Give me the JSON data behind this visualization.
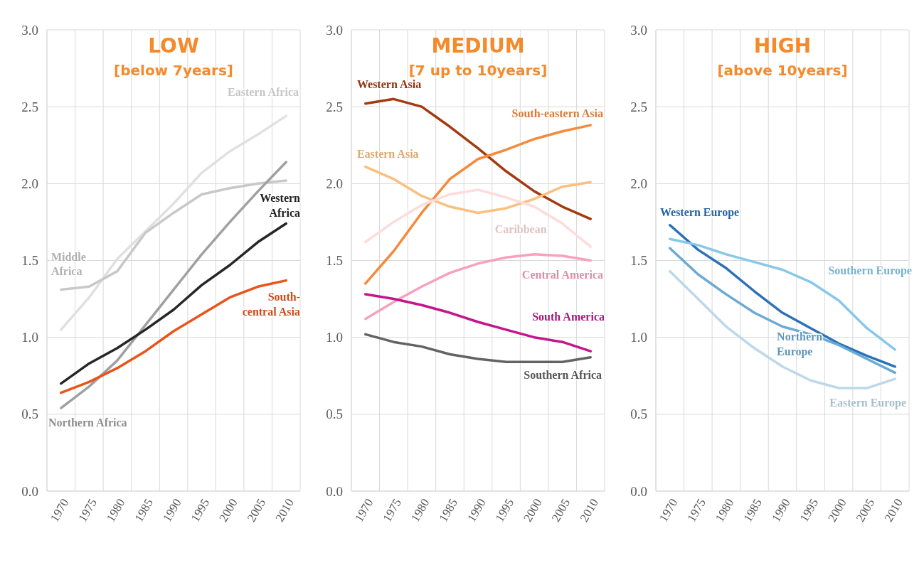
{
  "chart_data": [
    {
      "type": "line",
      "title": "LOW",
      "subtitle": "[below 7years]",
      "categories": [
        "1970",
        "1975",
        "1980",
        "1985",
        "1990",
        "1995",
        "2000",
        "2005",
        "2010"
      ],
      "ylim": [
        0,
        3
      ],
      "yticks": [
        {
          "value": 0,
          "label": "0.0"
        },
        {
          "value": 0.5,
          "label": "0.5"
        },
        {
          "value": 1,
          "label": "1.0"
        },
        {
          "value": 1.5,
          "label": "1.5"
        },
        {
          "value": 2,
          "label": "2.0"
        },
        {
          "value": 2.5,
          "label": "2.5"
        },
        {
          "value": 3,
          "label": "3.0"
        }
      ],
      "grid": true,
      "series": [
        {
          "name": "Eastern Africa",
          "color": "#e0e0e0",
          "values": [
            1.05,
            1.26,
            1.51,
            1.69,
            1.87,
            2.07,
            2.21,
            2.32,
            2.44
          ]
        },
        {
          "name": "Middle Africa",
          "color": "#c8c8c8",
          "values": [
            1.31,
            1.33,
            1.43,
            1.68,
            1.81,
            1.93,
            1.97,
            2.0,
            2.02
          ]
        },
        {
          "name": "Northern Africa",
          "color": "#a0a0a0",
          "values": [
            0.54,
            0.68,
            0.85,
            1.08,
            1.31,
            1.54,
            1.75,
            1.95,
            2.14
          ]
        },
        {
          "name": "Western Africa",
          "color": "#262626",
          "values": [
            0.7,
            0.83,
            0.93,
            1.05,
            1.18,
            1.34,
            1.47,
            1.62,
            1.74
          ]
        },
        {
          "name": "South-central Asia",
          "color": "#e8541a",
          "values": [
            0.64,
            0.71,
            0.8,
            0.91,
            1.04,
            1.15,
            1.26,
            1.33,
            1.37
          ]
        }
      ]
    },
    {
      "type": "line",
      "title": "MEDIUM",
      "subtitle": "[7 up to 10years]",
      "categories": [
        "1970",
        "1975",
        "1980",
        "1985",
        "1990",
        "1995",
        "2000",
        "2005",
        "2010"
      ],
      "ylim": [
        0,
        3
      ],
      "yticks": [
        {
          "value": 0,
          "label": "0.0"
        },
        {
          "value": 0.5,
          "label": "0.5"
        },
        {
          "value": 1,
          "label": "1.0"
        },
        {
          "value": 1.5,
          "label": "1.5"
        },
        {
          "value": 2,
          "label": "2.0"
        },
        {
          "value": 2.5,
          "label": "2.5"
        },
        {
          "value": 3,
          "label": "3.0"
        }
      ],
      "grid": true,
      "series": [
        {
          "name": "Western Asia",
          "color": "#a33a10",
          "values": [
            2.52,
            2.55,
            2.5,
            2.37,
            2.23,
            2.08,
            1.95,
            1.85,
            1.77
          ]
        },
        {
          "name": "South-eastern Asia",
          "color": "#f58a3c",
          "values": [
            1.35,
            1.56,
            1.81,
            2.03,
            2.16,
            2.22,
            2.29,
            2.34,
            2.38
          ]
        },
        {
          "name": "Eastern Asia",
          "color": "#fbbf80",
          "values": [
            2.11,
            2.03,
            1.92,
            1.85,
            1.81,
            1.84,
            1.9,
            1.98,
            2.01
          ]
        },
        {
          "name": "Caribbean",
          "color": "#fddcdc",
          "values": [
            1.62,
            1.75,
            1.86,
            1.93,
            1.96,
            1.91,
            1.85,
            1.74,
            1.59
          ]
        },
        {
          "name": "Central America",
          "color": "#f7a1bf",
          "values": [
            1.12,
            1.23,
            1.33,
            1.42,
            1.48,
            1.52,
            1.54,
            1.53,
            1.5
          ]
        },
        {
          "name": "South America",
          "color": "#c4168c",
          "values": [
            1.28,
            1.25,
            1.21,
            1.16,
            1.1,
            1.05,
            1.0,
            0.97,
            0.91
          ]
        },
        {
          "name": "Southern Africa",
          "color": "#636363",
          "values": [
            1.02,
            0.97,
            0.94,
            0.89,
            0.86,
            0.84,
            0.84,
            0.84,
            0.87
          ]
        }
      ]
    },
    {
      "type": "line",
      "title": "HIGH",
      "subtitle": "[above 10years]",
      "categories": [
        "1970",
        "1975",
        "1980",
        "1985",
        "1990",
        "1995",
        "2000",
        "2005",
        "2010"
      ],
      "ylim": [
        0,
        3
      ],
      "yticks": [
        {
          "value": 0,
          "label": "0.0"
        },
        {
          "value": 0.5,
          "label": "0.5"
        },
        {
          "value": 1,
          "label": "1.0"
        },
        {
          "value": 1.5,
          "label": "1.5"
        },
        {
          "value": 2,
          "label": "2.0"
        },
        {
          "value": 2.5,
          "label": "2.5"
        },
        {
          "value": 3,
          "label": "3.0"
        }
      ],
      "grid": true,
      "series": [
        {
          "name": "Western Europe",
          "color": "#2a72b8",
          "values": [
            1.73,
            1.57,
            1.45,
            1.3,
            1.16,
            1.06,
            0.96,
            0.88,
            0.81
          ]
        },
        {
          "name": "Southern Europe",
          "color": "#87c8e8",
          "values": [
            1.64,
            1.6,
            1.54,
            1.49,
            1.44,
            1.36,
            1.24,
            1.06,
            0.92
          ]
        },
        {
          "name": "Northern Europe",
          "color": "#6aaad4",
          "values": [
            1.58,
            1.41,
            1.28,
            1.16,
            1.07,
            1.02,
            0.95,
            0.86,
            0.77
          ]
        },
        {
          "name": "Eastern Europe",
          "color": "#bcd8ea",
          "values": [
            1.43,
            1.25,
            1.07,
            0.93,
            0.81,
            0.72,
            0.67,
            0.67,
            0.73
          ]
        }
      ]
    }
  ]
}
